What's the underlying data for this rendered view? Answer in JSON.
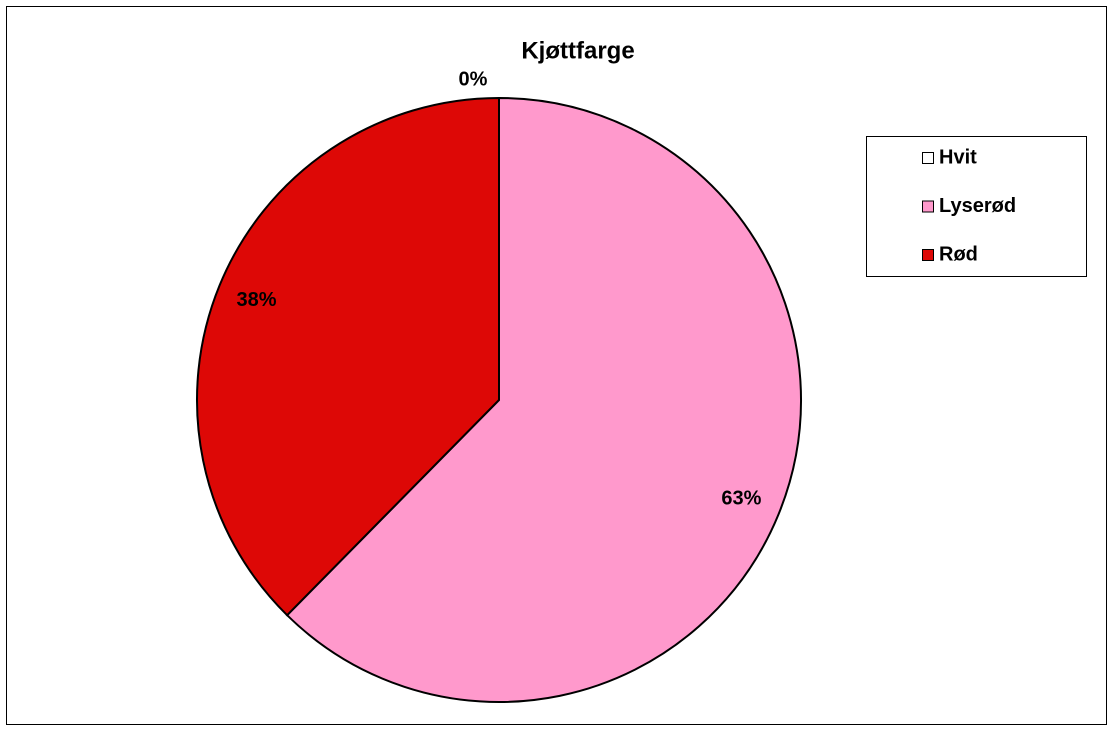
{
  "chart_data": {
    "type": "pie",
    "title": "Kjøttfarge",
    "categories": [
      "Hvit",
      "Lyserød",
      "Rød"
    ],
    "values": [
      0,
      63,
      38
    ],
    "value_labels": [
      "0%",
      "63%",
      "38%"
    ],
    "colors": [
      "#ffffff",
      "#ff99cc",
      "#dd0806"
    ],
    "legend": "right"
  }
}
